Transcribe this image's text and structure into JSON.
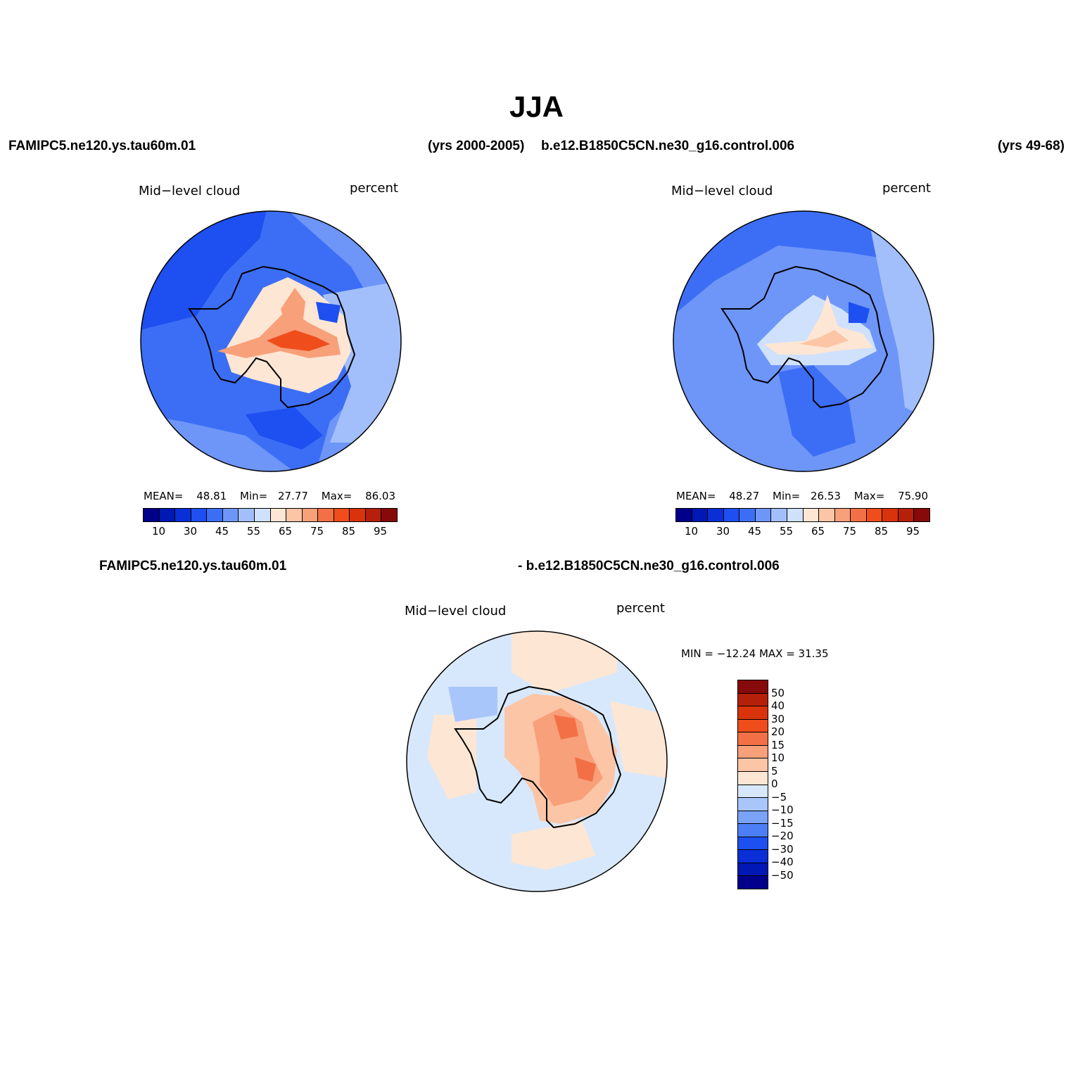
{
  "title": "JJA",
  "header": {
    "case1_name": "FAMIPC5.ne120.ys.tau60m.01",
    "case1_years": "(yrs 2000-2005)",
    "case2_name": "b.e12.B1850C5CN.ne30_g16.control.006",
    "case2_years": "(yrs 49-68)",
    "diff_left": "FAMIPC5.ne120.ys.tau60m.01",
    "diff_right": "- b.e12.B1850C5CN.ne30_g16.control.006"
  },
  "panels": [
    {
      "variable": "Mid−level cloud",
      "units": "percent",
      "stats": {
        "mean_label": "MEAN=",
        "mean": "48.81",
        "min_label": "Min=",
        "min": "27.77",
        "max_label": "Max=",
        "max": "86.03"
      }
    },
    {
      "variable": "Mid−level cloud",
      "units": "percent",
      "stats": {
        "mean_label": "MEAN=",
        "mean": "48.27",
        "min_label": "Min=",
        "min": "26.53",
        "max_label": "Max=",
        "max": "75.90"
      }
    },
    {
      "variable": "Mid−level cloud",
      "units": "percent",
      "stats_text": "MIN = −12.24 MAX =   31.35"
    }
  ],
  "colorbar_abs": {
    "colors": [
      "#00008b",
      "#0018b4",
      "#0a2fd6",
      "#1e4ff0",
      "#3c6ef5",
      "#6e96f8",
      "#a2bffb",
      "#cfe1fd",
      "#fde6d4",
      "#fcc5a6",
      "#f8a07a",
      "#f37046",
      "#f04d1c",
      "#d9330c",
      "#b5200b",
      "#860a0a"
    ],
    "tick_labels": [
      "10",
      "30",
      "45",
      "55",
      "65",
      "75",
      "85",
      "95"
    ]
  },
  "colorbar_diff": {
    "colors": [
      "#860a0a",
      "#b5200b",
      "#d9330c",
      "#f04d1c",
      "#f37046",
      "#f8a07a",
      "#fcc5a6",
      "#fde6d4",
      "#d7e8fc",
      "#a9c6fb",
      "#7aa3f8",
      "#4c7ef5",
      "#1e4ff0",
      "#0a2fd6",
      "#0018b4",
      "#00008b"
    ],
    "tick_labels": [
      "50",
      "40",
      "30",
      "20",
      "15",
      "10",
      "5",
      "0",
      "−5",
      "−10",
      "−15",
      "−20",
      "−30",
      "−40",
      "−50"
    ]
  },
  "colors": {
    "ocean_abs": "#3c6ef5",
    "ocean_diff": "#d7e8fc",
    "coastline": "#000000"
  }
}
